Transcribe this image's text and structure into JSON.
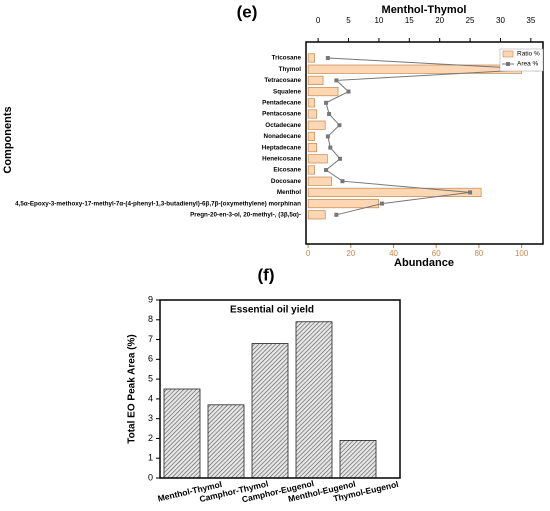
{
  "chart_data": [
    {
      "type": "bar",
      "orientation": "horizontal",
      "label": "(e)",
      "x_label": "Abundance",
      "x2_label": "Menthol-Thymol",
      "y_label": "Components",
      "categories": [
        "Tricosane",
        "Thymol",
        "Tetracosane",
        "Squalene",
        "Pentadecane",
        "Pentacosane",
        "Octadecane",
        "Nonadecane",
        "Heptadecane",
        "Heneicosane",
        "Eicosane",
        "Docosane",
        "Menthol",
        "4,5α-Epoxy-3-methoxy-17-methyl-7α-(4-phenyl-1,3-butadienyl)-6β,7β-(oxymethylene) morphinan",
        "Pregn-20-en-3-ol, 20-methyl-, (3β,5α)-"
      ],
      "series": [
        {
          "name": "Ratio %",
          "type": "bar",
          "axis": "x",
          "color": "#fdd7b4",
          "values": [
            3,
            100,
            7,
            14,
            3,
            4,
            8,
            3,
            4,
            9,
            3,
            11,
            81,
            33,
            8
          ]
        },
        {
          "name": "Area %",
          "type": "line",
          "axis": "x2",
          "color": "#777777",
          "values": [
            1.6,
            36,
            3,
            5,
            1.3,
            1.8,
            3.5,
            1.6,
            2,
            3.6,
            1.3,
            4,
            25,
            10.5,
            3
          ]
        }
      ],
      "xlim": [
        -1,
        110
      ],
      "xticks": [
        0,
        20,
        40,
        60,
        80,
        100
      ],
      "x2lim": [
        -2,
        37
      ],
      "x2ticks": [
        0,
        5,
        10,
        15,
        20,
        25,
        30,
        35
      ],
      "legend": "upper right"
    },
    {
      "type": "bar",
      "label": "(f)",
      "title": "Essential oil yield",
      "y_label": "Total EO Peak Area (%)",
      "categories": [
        "Menthol-Thymol",
        "Camphor-Thymol",
        "Camphor-Eugenol",
        "Menthol-Eugenol",
        "Thymol-Eugenol"
      ],
      "values": [
        4.5,
        3.7,
        6.8,
        7.9,
        1.9
      ],
      "color": "#9a9a9a",
      "ylim": [
        0,
        9
      ],
      "yticks": [
        0,
        1,
        2,
        3,
        4,
        5,
        6,
        7,
        8,
        9
      ]
    }
  ]
}
